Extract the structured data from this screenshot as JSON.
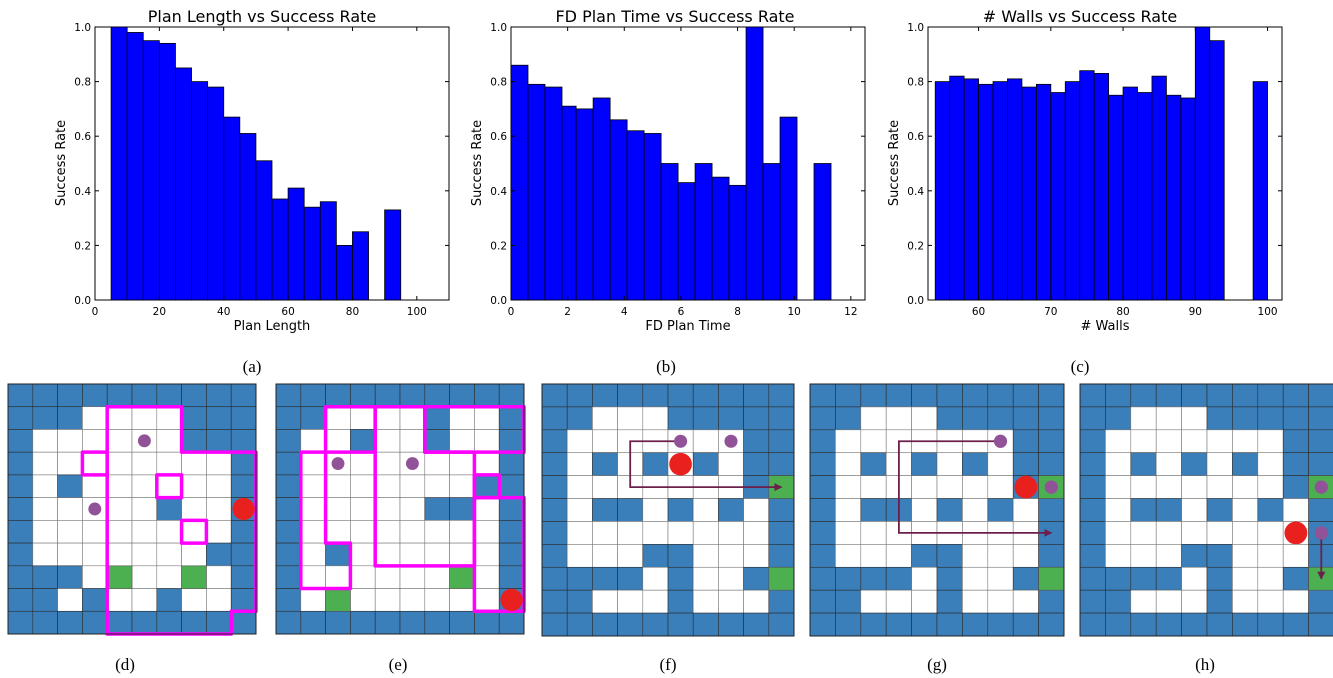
{
  "colors": {
    "bar": "#0000ff",
    "bar_edge": "#000000",
    "wall": "#3a7fba",
    "free": "#ffffff",
    "grid_line": "#555555",
    "goal": "#4caf50",
    "agent": "#e8211f",
    "waypoint": "#915297",
    "room_outline": "#ff00ff",
    "arrow": "#6b1f4a"
  },
  "chart_data": [
    {
      "type": "bar",
      "title": "Plan Length vs Success Rate",
      "xlabel": "Plan Length",
      "ylabel": "Success Rate",
      "xlim": [
        0,
        110
      ],
      "ylim": [
        0,
        1.0
      ],
      "xticks": [
        0,
        20,
        40,
        60,
        80,
        100
      ],
      "yticks": [
        0.0,
        0.2,
        0.4,
        0.6,
        0.8,
        1.0
      ],
      "x_start": [
        5,
        10,
        15,
        20,
        25,
        30,
        35,
        40,
        45,
        50,
        55,
        60,
        65,
        70,
        75,
        80,
        90
      ],
      "x_end": [
        10,
        15,
        20,
        25,
        30,
        35,
        40,
        45,
        50,
        55,
        60,
        65,
        70,
        75,
        80,
        85,
        95
      ],
      "values": [
        1.0,
        0.98,
        0.95,
        0.94,
        0.85,
        0.8,
        0.78,
        0.67,
        0.61,
        0.51,
        0.37,
        0.41,
        0.34,
        0.36,
        0.2,
        0.25,
        0.33
      ],
      "caption": "(a)"
    },
    {
      "type": "bar",
      "title": "FD Plan Time vs Success Rate",
      "xlabel": "FD Plan Time",
      "ylabel": "Success Rate",
      "xlim": [
        0,
        12.5
      ],
      "ylim": [
        0,
        1.0
      ],
      "xticks": [
        0,
        2,
        4,
        6,
        8,
        10,
        12
      ],
      "yticks": [
        0.0,
        0.2,
        0.4,
        0.6,
        0.8,
        1.0
      ],
      "x_start": [
        0.0,
        0.6,
        1.2,
        1.8,
        2.3,
        2.9,
        3.5,
        4.1,
        4.7,
        5.3,
        5.9,
        6.5,
        7.1,
        7.7,
        8.3,
        8.9,
        9.5,
        10.7
      ],
      "x_end": [
        0.6,
        1.2,
        1.8,
        2.3,
        2.9,
        3.5,
        4.1,
        4.7,
        5.3,
        5.9,
        6.5,
        7.1,
        7.7,
        8.3,
        8.9,
        9.5,
        10.1,
        11.3
      ],
      "values": [
        0.86,
        0.79,
        0.78,
        0.71,
        0.7,
        0.74,
        0.66,
        0.62,
        0.61,
        0.5,
        0.43,
        0.5,
        0.45,
        0.42,
        1.0,
        0.5,
        0.67,
        0.5
      ],
      "caption": "(b)"
    },
    {
      "type": "bar",
      "title": "# Walls vs Success Rate",
      "xlabel": "# Walls",
      "ylabel": "Success Rate",
      "xlim": [
        53,
        102
      ],
      "ylim": [
        0,
        1.0
      ],
      "xticks": [
        60,
        70,
        80,
        90,
        100
      ],
      "yticks": [
        0.0,
        0.2,
        0.4,
        0.6,
        0.8,
        1.0
      ],
      "x_start": [
        54,
        56,
        58,
        60,
        62,
        64,
        66,
        68,
        70,
        72,
        74,
        76,
        78,
        80,
        82,
        84,
        86,
        88,
        90,
        92,
        98
      ],
      "x_end": [
        56,
        58,
        60,
        62,
        64,
        66,
        68,
        70,
        72,
        74,
        76,
        78,
        80,
        82,
        84,
        86,
        88,
        90,
        92,
        94,
        100
      ],
      "values": [
        0.8,
        0.82,
        0.81,
        0.79,
        0.8,
        0.81,
        0.78,
        0.79,
        0.76,
        0.8,
        0.84,
        0.83,
        0.75,
        0.78,
        0.76,
        0.82,
        0.75,
        0.74,
        1.0,
        0.95,
        0.8
      ],
      "caption": "(c)"
    }
  ],
  "mazes": [
    {
      "caption": "(d)",
      "grid": [
        "1111111111",
        "1110000111",
        "1000000111",
        "1000000001",
        "1010000001",
        "1000001001",
        "1000000001",
        "1000000011",
        "1110000001",
        "1101001001",
        "1111111111"
      ],
      "goals": [
        [
          8,
          4
        ],
        [
          8,
          7
        ]
      ],
      "agents": [
        [
          5,
          9
        ]
      ],
      "waypoints": [
        [
          2,
          5
        ],
        [
          5,
          3
        ]
      ],
      "arrows": [],
      "rooms": [
        [
          [
            1,
            4
          ],
          [
            1,
            7
          ],
          [
            3,
            7
          ],
          [
            3,
            10
          ],
          [
            10,
            10
          ],
          [
            10,
            9
          ],
          [
            11,
            9
          ],
          [
            11,
            4
          ]
        ],
        [
          [
            3,
            3
          ],
          [
            4,
            3
          ],
          [
            4,
            4
          ],
          [
            3,
            4
          ]
        ],
        [
          [
            4,
            6
          ],
          [
            5,
            6
          ],
          [
            5,
            7
          ],
          [
            4,
            7
          ]
        ],
        [
          [
            6,
            7
          ],
          [
            7,
            7
          ],
          [
            7,
            8
          ],
          [
            6,
            8
          ]
        ]
      ]
    },
    {
      "caption": "(e)",
      "grid": [
        "1111111111",
        "1100001001",
        "1001001001",
        "1000000001",
        "1000000011",
        "1000001101",
        "1000000001",
        "1010000001",
        "1000000001",
        "1010000001",
        "1111111111"
      ],
      "goals": [
        [
          9,
          2
        ],
        [
          8,
          7
        ]
      ],
      "agents": [
        [
          9,
          9
        ]
      ],
      "waypoints": [
        [
          3,
          2
        ],
        [
          3,
          5
        ]
      ],
      "arrows": [],
      "rooms": [
        [
          [
            1,
            2
          ],
          [
            1,
            4
          ],
          [
            3,
            4
          ],
          [
            3,
            1
          ],
          [
            9,
            1
          ],
          [
            9,
            3
          ],
          [
            7,
            3
          ],
          [
            7,
            2
          ]
        ],
        [
          [
            1,
            4
          ],
          [
            1,
            6
          ],
          [
            3,
            6
          ],
          [
            3,
            8
          ],
          [
            8,
            8
          ],
          [
            8,
            4
          ]
        ],
        [
          [
            1,
            6
          ],
          [
            1,
            10
          ],
          [
            3,
            10
          ],
          [
            3,
            6
          ]
        ],
        [
          [
            4,
            8
          ],
          [
            4,
            9
          ],
          [
            5,
            9
          ],
          [
            5,
            8
          ]
        ],
        [
          [
            5,
            8
          ],
          [
            5,
            10
          ],
          [
            10,
            10
          ],
          [
            10,
            8
          ]
        ]
      ]
    },
    {
      "caption": "(f)",
      "grid": [
        "1111111111",
        "1100011111",
        "1000000011",
        "1010101011",
        "1000000011",
        "1011010101",
        "1000000001",
        "1000110001",
        "1111010011",
        "1100010001",
        "1111111111"
      ],
      "goals": [
        [
          4,
          9
        ],
        [
          8,
          9
        ]
      ],
      "agents": [
        [
          3,
          5
        ]
      ],
      "waypoints": [
        [
          2,
          5
        ],
        [
          2,
          7
        ]
      ],
      "arrows": [
        [
          [
            2,
            5
          ],
          [
            2,
            3
          ],
          [
            4,
            3
          ],
          [
            4,
            9
          ]
        ]
      ],
      "rooms": []
    },
    {
      "caption": "(g)",
      "grid": [
        "1111111111",
        "1100011111",
        "1000000011",
        "1010101011",
        "1000000011",
        "1011010101",
        "1000000001",
        "1000110001",
        "1111010011",
        "1100010001",
        "1111111111"
      ],
      "goals": [
        [
          4,
          9
        ],
        [
          8,
          9
        ]
      ],
      "agents": [
        [
          4,
          8
        ]
      ],
      "waypoints": [
        [
          2,
          7
        ],
        [
          4,
          9
        ]
      ],
      "arrows": [
        [
          [
            2,
            7
          ],
          [
            2,
            3
          ],
          [
            6,
            3
          ],
          [
            6,
            9
          ]
        ]
      ],
      "rooms": []
    },
    {
      "caption": "(h)",
      "grid": [
        "1111111111",
        "1100011111",
        "1000000011",
        "1010101011",
        "1000000011",
        "1011010101",
        "1000000001",
        "1000110001",
        "1111010011",
        "1100010001",
        "1111111111"
      ],
      "goals": [
        [
          4,
          9
        ],
        [
          8,
          9
        ]
      ],
      "agents": [
        [
          6,
          8
        ]
      ],
      "waypoints": [
        [
          4,
          9
        ],
        [
          6,
          9
        ]
      ],
      "arrows": [
        [
          [
            6,
            9
          ],
          [
            8,
            9
          ]
        ]
      ],
      "rooms": []
    }
  ]
}
